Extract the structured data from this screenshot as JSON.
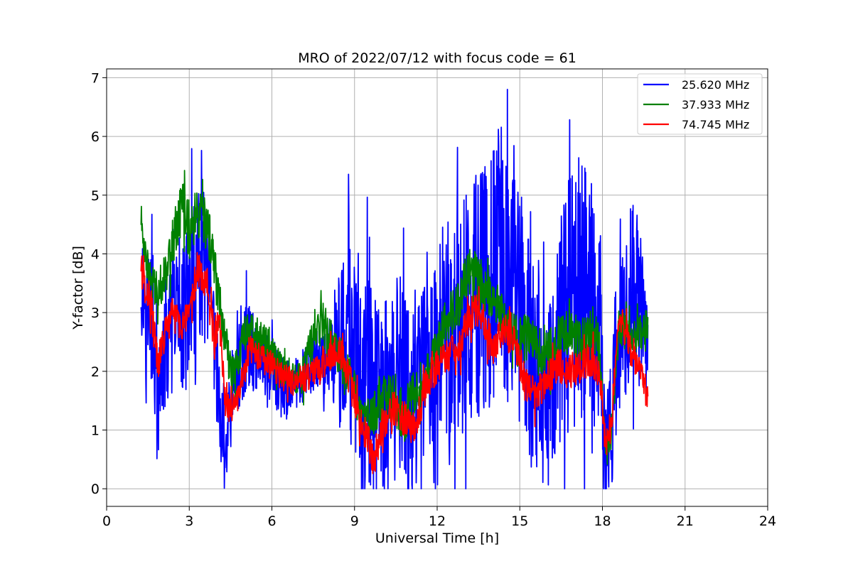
{
  "chart_data": {
    "type": "line",
    "title": "MRO of 2022/07/12 with focus code = 61",
    "xlabel": "Universal Time [h]",
    "ylabel": "Y-factor [dB]",
    "xlim": [
      0,
      24
    ],
    "ylim": [
      -0.3,
      7.15
    ],
    "xticks": [
      0,
      3,
      6,
      9,
      12,
      15,
      18,
      21,
      24
    ],
    "yticks": [
      0,
      1,
      2,
      3,
      4,
      5,
      6,
      7
    ],
    "grid": true,
    "legend_position": "top-right",
    "series": [
      {
        "name": "25.620 MHz",
        "color": "#0000ff",
        "x": [
          1.25,
          1.5,
          1.7,
          1.85,
          2.0,
          2.3,
          2.6,
          2.9,
          3.2,
          3.5,
          3.7,
          3.85,
          4.0,
          4.15,
          4.3,
          4.5,
          4.8,
          5.1,
          5.5,
          5.8,
          6.1,
          6.4,
          6.7,
          7.0,
          7.3,
          7.6,
          7.9,
          8.1,
          8.4,
          8.8,
          9.2,
          9.6,
          10.0,
          10.4,
          10.8,
          11.2,
          11.6,
          12.0,
          12.4,
          12.8,
          13.2,
          13.6,
          14.0,
          14.4,
          14.8,
          15.2,
          15.6,
          16.0,
          16.4,
          16.8,
          17.2,
          17.6,
          17.9,
          18.1,
          18.3,
          18.6,
          18.9,
          19.2,
          19.5,
          19.65
        ],
        "y": [
          3.5,
          3.2,
          2.7,
          1.2,
          2.0,
          2.6,
          3.1,
          3.0,
          3.3,
          3.8,
          3.3,
          2.6,
          2.0,
          1.1,
          0.6,
          1.4,
          2.2,
          2.4,
          2.3,
          2.1,
          2.0,
          1.6,
          1.7,
          1.9,
          2.0,
          2.2,
          2.1,
          2.3,
          2.4,
          2.5,
          2.0,
          1.5,
          1.6,
          1.9,
          1.8,
          1.4,
          1.9,
          2.1,
          2.5,
          2.8,
          3.2,
          3.4,
          3.6,
          4.2,
          3.5,
          2.6,
          2.0,
          1.4,
          2.6,
          3.2,
          3.4,
          3.3,
          2.9,
          0.6,
          1.0,
          2.7,
          3.3,
          3.4,
          2.6,
          2.2
        ],
        "amp": [
          0.9,
          1.0,
          1.2,
          0.9,
          0.9,
          1.1,
          1.3,
          1.4,
          1.6,
          1.5,
          1.2,
          1.0,
          0.9,
          0.7,
          0.6,
          0.8,
          0.9,
          0.8,
          0.6,
          0.6,
          0.6,
          0.6,
          0.5,
          0.5,
          0.5,
          0.5,
          0.5,
          0.6,
          1.3,
          1.6,
          2.0,
          2.0,
          2.0,
          1.9,
          1.8,
          1.7,
          1.9,
          2.1,
          2.2,
          2.1,
          2.2,
          2.2,
          2.3,
          2.6,
          2.4,
          2.1,
          1.8,
          1.4,
          1.9,
          2.2,
          2.3,
          2.3,
          2.0,
          0.8,
          1.1,
          1.7,
          1.7,
          1.5,
          1.2,
          1.0
        ]
      },
      {
        "name": "37.933 MHz",
        "color": "#008000",
        "x": [
          1.25,
          1.35,
          1.6,
          1.9,
          2.2,
          2.5,
          2.8,
          3.0,
          3.3,
          3.6,
          3.9,
          4.2,
          4.5,
          4.8,
          5.1,
          5.5,
          5.9,
          6.3,
          6.7,
          7.1,
          7.5,
          7.8,
          8.1,
          8.4,
          8.8,
          9.2,
          9.6,
          10.0,
          10.4,
          10.8,
          11.2,
          11.6,
          12.0,
          12.3,
          12.6,
          12.9,
          13.2,
          13.5,
          13.8,
          14.1,
          14.4,
          14.8,
          15.2,
          15.6,
          16.0,
          16.4,
          16.8,
          17.2,
          17.6,
          17.9,
          18.1,
          18.3,
          18.6,
          18.9,
          19.2,
          19.5,
          19.65
        ],
        "y": [
          4.6,
          4.2,
          3.5,
          3.4,
          3.8,
          4.4,
          4.9,
          4.4,
          4.6,
          4.5,
          3.9,
          2.8,
          2.0,
          2.3,
          2.8,
          2.6,
          2.4,
          2.1,
          1.9,
          1.9,
          2.6,
          3.0,
          2.5,
          2.2,
          2.0,
          1.4,
          1.2,
          1.5,
          1.6,
          1.2,
          1.7,
          1.9,
          2.4,
          2.9,
          3.0,
          3.3,
          3.8,
          3.5,
          3.4,
          3.2,
          2.9,
          2.6,
          2.6,
          2.4,
          2.3,
          2.5,
          2.7,
          2.5,
          2.8,
          2.4,
          0.8,
          0.8,
          2.8,
          2.6,
          2.6,
          2.7,
          2.8
        ],
        "amp": [
          0.3,
          0.3,
          0.3,
          0.35,
          0.4,
          0.45,
          0.5,
          0.55,
          0.5,
          0.45,
          0.45,
          0.4,
          0.35,
          0.35,
          0.35,
          0.3,
          0.3,
          0.3,
          0.3,
          0.3,
          0.4,
          0.45,
          0.4,
          0.35,
          0.35,
          0.35,
          0.35,
          0.4,
          0.45,
          0.45,
          0.4,
          0.35,
          0.35,
          0.4,
          0.4,
          0.45,
          0.45,
          0.45,
          0.4,
          0.4,
          0.4,
          0.4,
          0.4,
          0.4,
          0.4,
          0.4,
          0.4,
          0.4,
          0.4,
          0.35,
          0.25,
          0.25,
          0.35,
          0.3,
          0.3,
          0.3,
          0.3
        ]
      },
      {
        "name": "74.745 MHz",
        "color": "#ff0000",
        "x": [
          1.25,
          1.4,
          1.6,
          1.85,
          2.1,
          2.4,
          2.7,
          3.0,
          3.3,
          3.6,
          3.9,
          4.1,
          4.3,
          4.5,
          4.8,
          5.2,
          5.6,
          6.0,
          6.4,
          6.8,
          7.2,
          7.6,
          8.0,
          8.4,
          8.8,
          9.2,
          9.5,
          9.7,
          10.0,
          10.4,
          10.8,
          11.2,
          11.6,
          12.0,
          12.4,
          12.8,
          13.2,
          13.6,
          14.0,
          14.4,
          14.8,
          15.2,
          15.6,
          16.0,
          16.4,
          16.8,
          17.2,
          17.6,
          17.9,
          18.1,
          18.3,
          18.6,
          18.9,
          19.2,
          19.5,
          19.65
        ],
        "y": [
          3.8,
          3.5,
          3.2,
          2.1,
          2.6,
          3.0,
          2.8,
          2.8,
          3.8,
          3.6,
          2.6,
          2.8,
          1.5,
          1.3,
          1.6,
          2.4,
          2.2,
          2.1,
          1.9,
          1.8,
          1.9,
          2.0,
          2.2,
          2.4,
          1.9,
          1.2,
          0.8,
          0.5,
          1.1,
          1.4,
          1.2,
          1.0,
          1.8,
          2.1,
          2.3,
          2.4,
          3.0,
          3.0,
          2.4,
          2.7,
          2.5,
          1.8,
          1.6,
          1.9,
          2.1,
          2.0,
          2.1,
          2.2,
          2.0,
          0.8,
          0.9,
          3.0,
          2.6,
          2.2,
          1.8,
          1.5
        ],
        "amp": [
          0.4,
          0.35,
          0.3,
          0.3,
          0.3,
          0.3,
          0.3,
          0.35,
          0.35,
          0.35,
          0.3,
          0.3,
          0.25,
          0.25,
          0.25,
          0.25,
          0.25,
          0.25,
          0.25,
          0.25,
          0.25,
          0.25,
          0.25,
          0.25,
          0.3,
          0.3,
          0.3,
          0.3,
          0.3,
          0.3,
          0.3,
          0.3,
          0.3,
          0.3,
          0.3,
          0.3,
          0.3,
          0.3,
          0.3,
          0.3,
          0.3,
          0.3,
          0.3,
          0.3,
          0.3,
          0.3,
          0.3,
          0.3,
          0.3,
          0.25,
          0.25,
          0.3,
          0.3,
          0.3,
          0.3,
          0.3
        ]
      }
    ]
  }
}
